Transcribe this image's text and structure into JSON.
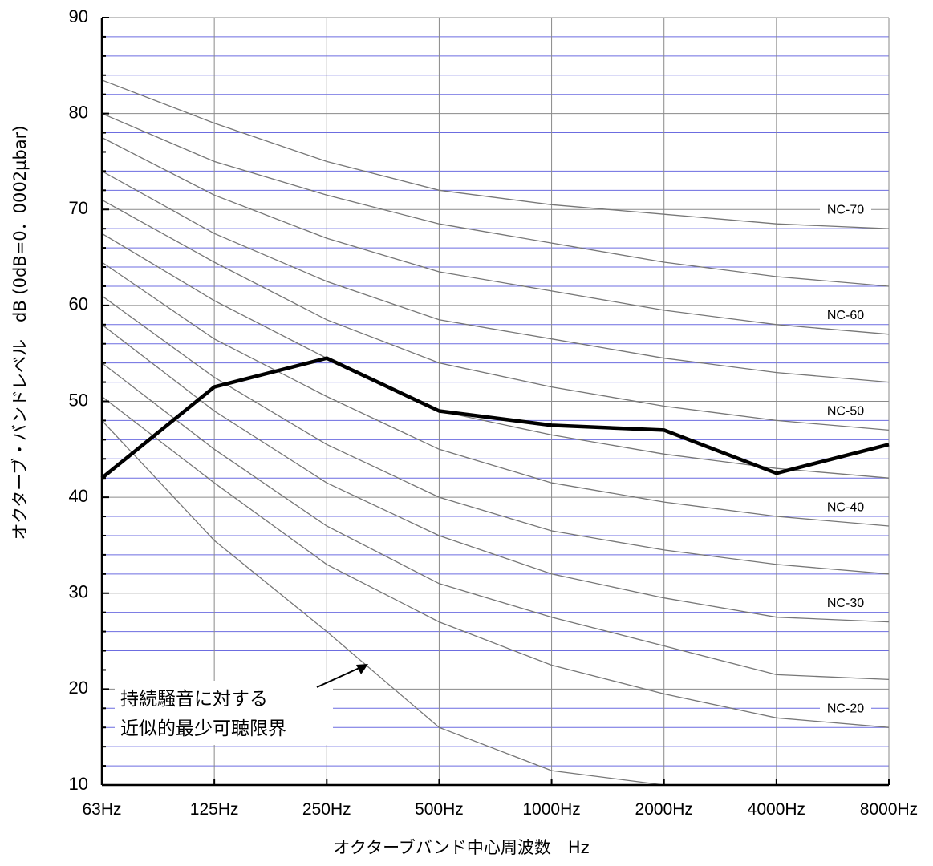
{
  "chart_data": {
    "type": "line",
    "xlabel": "オクターブバンド中心周波数　Hz",
    "ylabel": "オクターブ・バンドレベル　dB (0dB=0．0002μbar)",
    "categories": [
      "63Hz",
      "125Hz",
      "250Hz",
      "500Hz",
      "1000Hz",
      "2000Hz",
      "4000Hz",
      "8000Hz"
    ],
    "ylim": [
      10,
      90
    ],
    "yticks": [
      10,
      20,
      30,
      40,
      50,
      60,
      70,
      80,
      90
    ],
    "grid": true,
    "nc_curves": [
      {
        "label": "NC-70",
        "values": [
          83.5,
          79,
          75,
          72,
          70.5,
          69.5,
          68.5,
          68
        ]
      },
      {
        "label": "",
        "values": [
          80,
          75,
          71.5,
          68.5,
          66.5,
          64.5,
          63,
          62
        ]
      },
      {
        "label": "NC-60",
        "values": [
          77.5,
          71.5,
          67,
          63.5,
          61.5,
          59.5,
          58,
          57
        ]
      },
      {
        "label": "",
        "values": [
          74,
          67.5,
          62.5,
          58.5,
          56.5,
          54.5,
          53,
          52
        ]
      },
      {
        "label": "NC-50",
        "values": [
          71,
          64.5,
          58.5,
          54,
          51.5,
          49.5,
          48,
          47
        ]
      },
      {
        "label": "",
        "values": [
          67.5,
          60.5,
          54.5,
          49,
          46.5,
          44.5,
          43,
          42
        ]
      },
      {
        "label": "NC-40",
        "values": [
          64.5,
          56.5,
          50.5,
          45,
          41.5,
          39.5,
          38,
          37
        ]
      },
      {
        "label": "",
        "values": [
          61,
          52.5,
          45.5,
          40,
          36.5,
          34.5,
          33,
          32
        ]
      },
      {
        "label": "NC-30",
        "values": [
          58,
          49,
          41.5,
          36,
          32,
          29.5,
          27.5,
          27
        ]
      },
      {
        "label": "",
        "values": [
          54,
          45,
          37,
          31,
          27.5,
          24.5,
          21.5,
          21
        ]
      },
      {
        "label": "NC-20",
        "values": [
          50.5,
          41.5,
          33,
          27,
          22.5,
          19.5,
          17,
          16
        ]
      }
    ],
    "threshold": {
      "values": [
        48,
        35.5,
        26,
        16,
        11.5,
        10
      ]
    },
    "measured": {
      "values": [
        42,
        51.5,
        54.5,
        49,
        47.5,
        47,
        42.5,
        45.5
      ]
    },
    "annotation": {
      "lines": [
        "持続騒音に対する",
        "近似的最少可聴限界"
      ]
    },
    "colors": {
      "minor_grid": "#3b3bd6",
      "major_grid": "#8a8a8a",
      "curve": "#777777",
      "measured": "#000000"
    }
  }
}
